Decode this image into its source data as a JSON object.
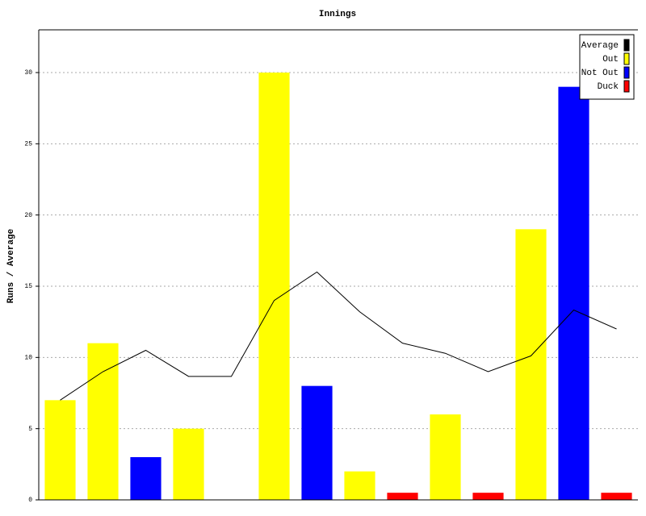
{
  "chart_data": {
    "type": "bar",
    "title": "Innings",
    "y_label": "Runs / Average",
    "categories": [
      null,
      null,
      null,
      null,
      null,
      null,
      null,
      null,
      null,
      null,
      null,
      null,
      null,
      null
    ],
    "series": [
      {
        "name": "Average",
        "color": "#000000",
        "type": "line",
        "values": [
          7,
          9,
          10.5,
          8.67,
          8.67,
          14,
          16,
          13.2,
          11,
          10.29,
          9,
          10.11,
          13.33,
          12
        ]
      },
      {
        "name": "Out",
        "color": "#ffff00",
        "values": [
          7,
          11,
          null,
          5,
          null,
          30,
          null,
          2,
          null,
          6,
          null,
          19,
          null,
          null
        ]
      },
      {
        "name": "Not Out",
        "color": "#0000ff",
        "values": [
          null,
          null,
          3,
          null,
          null,
          null,
          8,
          null,
          null,
          null,
          null,
          null,
          29,
          null
        ]
      },
      {
        "name": "Duck",
        "color": "#ff0000",
        "values": [
          null,
          null,
          null,
          null,
          null,
          null,
          null,
          null,
          0.5,
          null,
          0.5,
          null,
          null,
          0.5
        ]
      }
    ],
    "ylim": [
      0,
      33
    ],
    "yticks": [
      0,
      5,
      10,
      15,
      20,
      25,
      30
    ],
    "grid": true,
    "legend": "top-right"
  }
}
